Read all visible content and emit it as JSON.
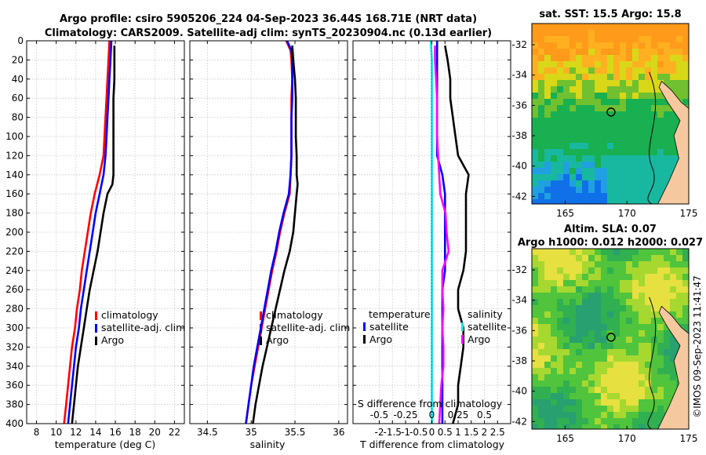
{
  "header": {
    "title_line1": "Argo profile: csiro 5905206_224 04-Sep-2023 36.44S 168.71E (NRT data)",
    "title_line2": "Climatology: CARS2009. Satellite-adj clim: synTS_20230904.nc (0.13d earlier)"
  },
  "colors": {
    "climatology": "#ff0000",
    "satellite": "#0000ff",
    "argo": "#000000",
    "satellite_salinity": "#00e5ee",
    "argo_salinity_diff": "#ff00ff"
  },
  "legend_profiles": {
    "climatology": "climatology",
    "satellite": "satellite-adj. clim",
    "argo": "Argo"
  },
  "legend_diff": {
    "temperature_heading": "temperature",
    "salinity_heading": "salinity",
    "satellite": "satellite",
    "argo": "Argo"
  },
  "maps": {
    "sst_title": "sat. SST: 15.5 Argo: 15.8",
    "sla_title_line1": "Altim. SLA: 0.07",
    "sla_title_line2": "Argo h1000: 0.012 h2000: 0.027",
    "lat_ticks": [
      "-32",
      "-34",
      "-36",
      "-38",
      "-40",
      "-42"
    ],
    "lon_ticks": [
      "165",
      "170",
      "175"
    ],
    "argo_position": {
      "lon": 168.71,
      "lat": -36.44
    }
  },
  "timestamp": "©IMOS 09-Sep-2023 11:41:47",
  "chart_data": [
    {
      "type": "line",
      "title": "",
      "xlabel": "temperature (deg C)",
      "ylabel": "",
      "xlim": [
        7,
        23
      ],
      "ylim": [
        400,
        0
      ],
      "grid": true,
      "x_tick_labels": [
        "8",
        "10",
        "12",
        "14",
        "16",
        "18",
        "20",
        "22"
      ],
      "y_tick_labels": [
        "0",
        "20",
        "40",
        "60",
        "80",
        "100",
        "120",
        "140",
        "160",
        "180",
        "200",
        "220",
        "240",
        "260",
        "280",
        "300",
        "320",
        "340",
        "360",
        "380",
        "400"
      ],
      "series": [
        {
          "name": "climatology",
          "depth": [
            0,
            20,
            40,
            60,
            80,
            100,
            120,
            140,
            160,
            180,
            200,
            220,
            240,
            260,
            280,
            300,
            320,
            340,
            360,
            380,
            400
          ],
          "values": [
            15.4,
            15.3,
            15.2,
            15.1,
            15.0,
            14.9,
            14.8,
            14.4,
            13.9,
            13.5,
            13.2,
            12.9,
            12.6,
            12.4,
            12.1,
            11.9,
            11.6,
            11.4,
            11.2,
            11.0,
            10.8
          ]
        },
        {
          "name": "satellite-adj. clim",
          "depth": [
            0,
            20,
            40,
            60,
            80,
            100,
            120,
            140,
            160,
            180,
            200,
            220,
            240,
            260,
            280,
            300,
            320,
            340,
            360,
            380,
            400
          ],
          "values": [
            15.6,
            15.5,
            15.4,
            15.3,
            15.2,
            15.1,
            15.0,
            14.8,
            14.4,
            14.0,
            13.7,
            13.4,
            13.1,
            12.8,
            12.5,
            12.3,
            12.0,
            11.8,
            11.6,
            11.4,
            11.2
          ]
        },
        {
          "name": "Argo",
          "depth": [
            5,
            20,
            40,
            60,
            80,
            100,
            120,
            140,
            150,
            160,
            180,
            200,
            220,
            240,
            260,
            280,
            300,
            320,
            340,
            360,
            380,
            400
          ],
          "values": [
            15.9,
            15.9,
            15.9,
            15.8,
            15.8,
            15.8,
            15.8,
            15.8,
            15.7,
            15.2,
            14.8,
            14.5,
            14.2,
            13.8,
            13.4,
            13.1,
            12.8,
            12.5,
            12.2,
            12.0,
            11.8,
            11.6
          ]
        }
      ]
    },
    {
      "type": "line",
      "title": "",
      "xlabel": "salinity",
      "ylabel": "",
      "xlim": [
        34.3,
        36.1
      ],
      "ylim": [
        400,
        0
      ],
      "grid": true,
      "x_tick_labels": [
        "34.5",
        "35",
        "35.5",
        "36"
      ],
      "series": [
        {
          "name": "climatology",
          "depth": [
            0,
            10,
            20,
            40,
            60,
            80,
            100,
            120,
            140,
            160,
            180,
            200,
            220,
            240,
            260,
            280,
            300,
            320,
            340,
            360,
            380,
            400
          ],
          "values": [
            35.4,
            35.45,
            35.46,
            35.47,
            35.46,
            35.46,
            35.46,
            35.46,
            35.45,
            35.44,
            35.38,
            35.33,
            35.29,
            35.24,
            35.2,
            35.16,
            35.12,
            35.08,
            35.04,
            35.0,
            34.97,
            34.94
          ]
        },
        {
          "name": "satellite-adj. clim",
          "depth": [
            0,
            10,
            20,
            40,
            60,
            80,
            100,
            120,
            140,
            160,
            180,
            200,
            220,
            240,
            260,
            280,
            300,
            320,
            340,
            360,
            380,
            400
          ],
          "values": [
            35.41,
            35.46,
            35.47,
            35.47,
            35.47,
            35.46,
            35.46,
            35.46,
            35.45,
            35.43,
            35.37,
            35.32,
            35.28,
            35.23,
            35.19,
            35.15,
            35.11,
            35.07,
            35.03,
            35.0,
            34.97,
            34.94
          ]
        },
        {
          "name": "Argo",
          "depth": [
            5,
            20,
            40,
            60,
            80,
            100,
            120,
            140,
            150,
            160,
            180,
            200,
            220,
            240,
            260,
            280,
            300,
            320,
            340,
            360,
            380,
            400
          ],
          "values": [
            35.47,
            35.48,
            35.5,
            35.51,
            35.51,
            35.51,
            35.52,
            35.52,
            35.53,
            35.52,
            35.5,
            35.48,
            35.44,
            35.38,
            35.33,
            35.28,
            35.23,
            35.18,
            35.13,
            35.09,
            35.05,
            35.02
          ]
        }
      ]
    },
    {
      "type": "line",
      "title": "",
      "xlabel": "T difference from climatology",
      "xlabel_top": "S difference from climatology",
      "ylabel": "",
      "xlim": [
        -3,
        3
      ],
      "ylim": [
        400,
        0
      ],
      "grid": true,
      "x_tick_labels": [
        "-2",
        "-1.5",
        "-1",
        "-0.5",
        "0",
        "0.5",
        "1",
        "1.5",
        "2",
        "2.5"
      ],
      "x_tick_labels_top": [
        "-0.5",
        "-0.25",
        "0",
        "0.25",
        "0.5"
      ],
      "series": [
        {
          "name": "temperature satellite",
          "depth": [
            0,
            20,
            40,
            60,
            80,
            100,
            120,
            140,
            160,
            180,
            200,
            220,
            240,
            260,
            280,
            300,
            320,
            340,
            360,
            380,
            400
          ],
          "values": [
            0.2,
            0.2,
            0.2,
            0.2,
            0.2,
            0.2,
            0.2,
            0.4,
            0.5,
            0.5,
            0.5,
            0.5,
            0.5,
            0.4,
            0.4,
            0.4,
            0.4,
            0.4,
            0.4,
            0.4,
            0.4
          ]
        },
        {
          "name": "temperature Argo",
          "depth": [
            5,
            20,
            40,
            60,
            80,
            100,
            120,
            140,
            160,
            180,
            200,
            220,
            240,
            260,
            280,
            300,
            320,
            340,
            360,
            380,
            400
          ],
          "values": [
            0.5,
            0.6,
            0.7,
            0.7,
            0.8,
            0.9,
            1.0,
            1.4,
            1.3,
            1.3,
            1.3,
            1.3,
            1.2,
            1.0,
            1.0,
            1.2,
            1.2,
            1.1,
            1.0,
            1.0,
            0.8
          ]
        },
        {
          "name": "salinity satellite",
          "depth": [
            0,
            20,
            40,
            60,
            80,
            100,
            120,
            140,
            160,
            180,
            200,
            220,
            240,
            260,
            280,
            300,
            320,
            340,
            360,
            380,
            400
          ],
          "values": [
            -0.01,
            0.0,
            0.0,
            0.0,
            0.0,
            0.0,
            0.0,
            0.0,
            0.0,
            0.0,
            0.0,
            0.0,
            0.0,
            0.0,
            0.0,
            0.0,
            0.0,
            0.0,
            0.0,
            0.0,
            0.0
          ]
        },
        {
          "name": "salinity Argo",
          "depth": [
            5,
            20,
            40,
            60,
            80,
            100,
            120,
            140,
            160,
            180,
            200,
            220,
            240,
            260,
            280,
            300,
            320,
            340,
            360,
            380,
            400
          ],
          "values": [
            0.03,
            0.03,
            0.04,
            0.05,
            0.05,
            0.05,
            0.06,
            0.07,
            0.08,
            0.13,
            0.14,
            0.16,
            0.1,
            0.1,
            0.11,
            0.1,
            0.11,
            0.11,
            0.09,
            0.08,
            0.07
          ]
        }
      ]
    }
  ]
}
